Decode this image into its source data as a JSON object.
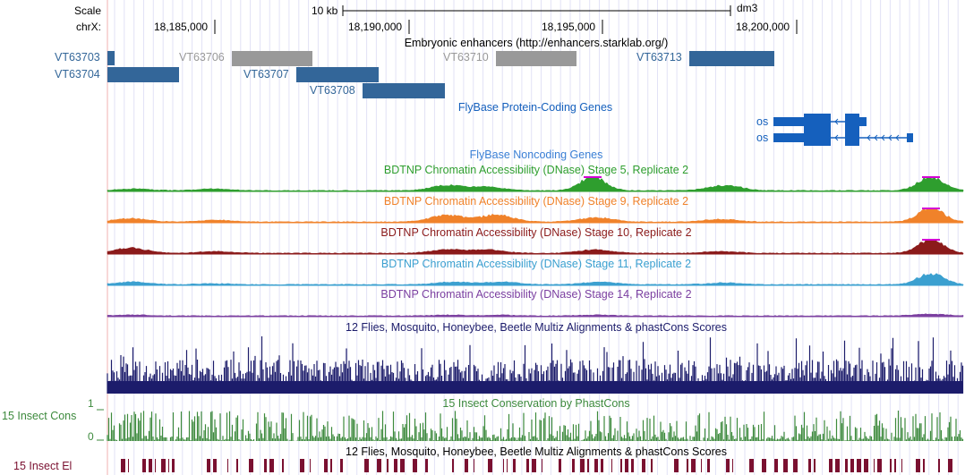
{
  "ruler": {
    "scale_label": "Scale",
    "scale_value": "10 kb",
    "assembly": "dm3",
    "chrom_label": "chrX:",
    "positions": [
      "18,185,000",
      "18,190,000",
      "18,195,000",
      "18,200,000"
    ]
  },
  "tracks": {
    "enhancers": {
      "title": "Embryonic enhancers (http://enhancers.starklab.org/)",
      "items": [
        {
          "name": "VT63703",
          "color": "#336699"
        },
        {
          "name": "VT63704",
          "color": "#336699"
        },
        {
          "name": "VT63706",
          "color": "#999999"
        },
        {
          "name": "VT63707",
          "color": "#336699"
        },
        {
          "name": "VT63708",
          "color": "#336699"
        },
        {
          "name": "VT63710",
          "color": "#999999"
        },
        {
          "name": "VT63713",
          "color": "#336699"
        }
      ]
    },
    "protein_genes": {
      "title": "FlyBase Protein-Coding Genes",
      "genes": [
        "os",
        "os"
      ],
      "color": "#1560bd"
    },
    "noncoding_genes": {
      "title": "FlyBase Noncoding Genes",
      "color": "#3a7fd5"
    },
    "dnase": [
      {
        "title": "BDTNP Chromatin Accessibility (DNase) Stage 5, Replicate 2",
        "color": "#2e9e2e"
      },
      {
        "title": "BDTNP Chromatin Accessibility (DNase) Stage 9, Replicate 2",
        "color": "#f0822a"
      },
      {
        "title": "BDTNP Chromatin Accessibility (DNase) Stage 10, Replicate 2",
        "color": "#8b1a1a"
      },
      {
        "title": "BDTNP Chromatin Accessibility (DNase) Stage 11, Replicate 2",
        "color": "#3ba0d0"
      },
      {
        "title": "BDTNP Chromatin Accessibility (DNase) Stage 14, Replicate 2",
        "color": "#7b3fa0"
      }
    ],
    "multiz": {
      "title": "12 Flies, Mosquito, Honeybee, Beetle Multiz Alignments & phastCons Scores",
      "color": "#1c1c6b"
    },
    "conservation": {
      "side_label": "15 Insect Cons",
      "title": "15 Insect Conservation by PhastCons",
      "axis_max": "1",
      "axis_min": "0",
      "color": "#3d8a3d"
    },
    "elements": {
      "side_label": "15 Insect El",
      "title": "12 Flies, Mosquito, Honeybee, Beetle Multiz Alignments & phastCons Scores",
      "color": "#7a1030"
    }
  }
}
